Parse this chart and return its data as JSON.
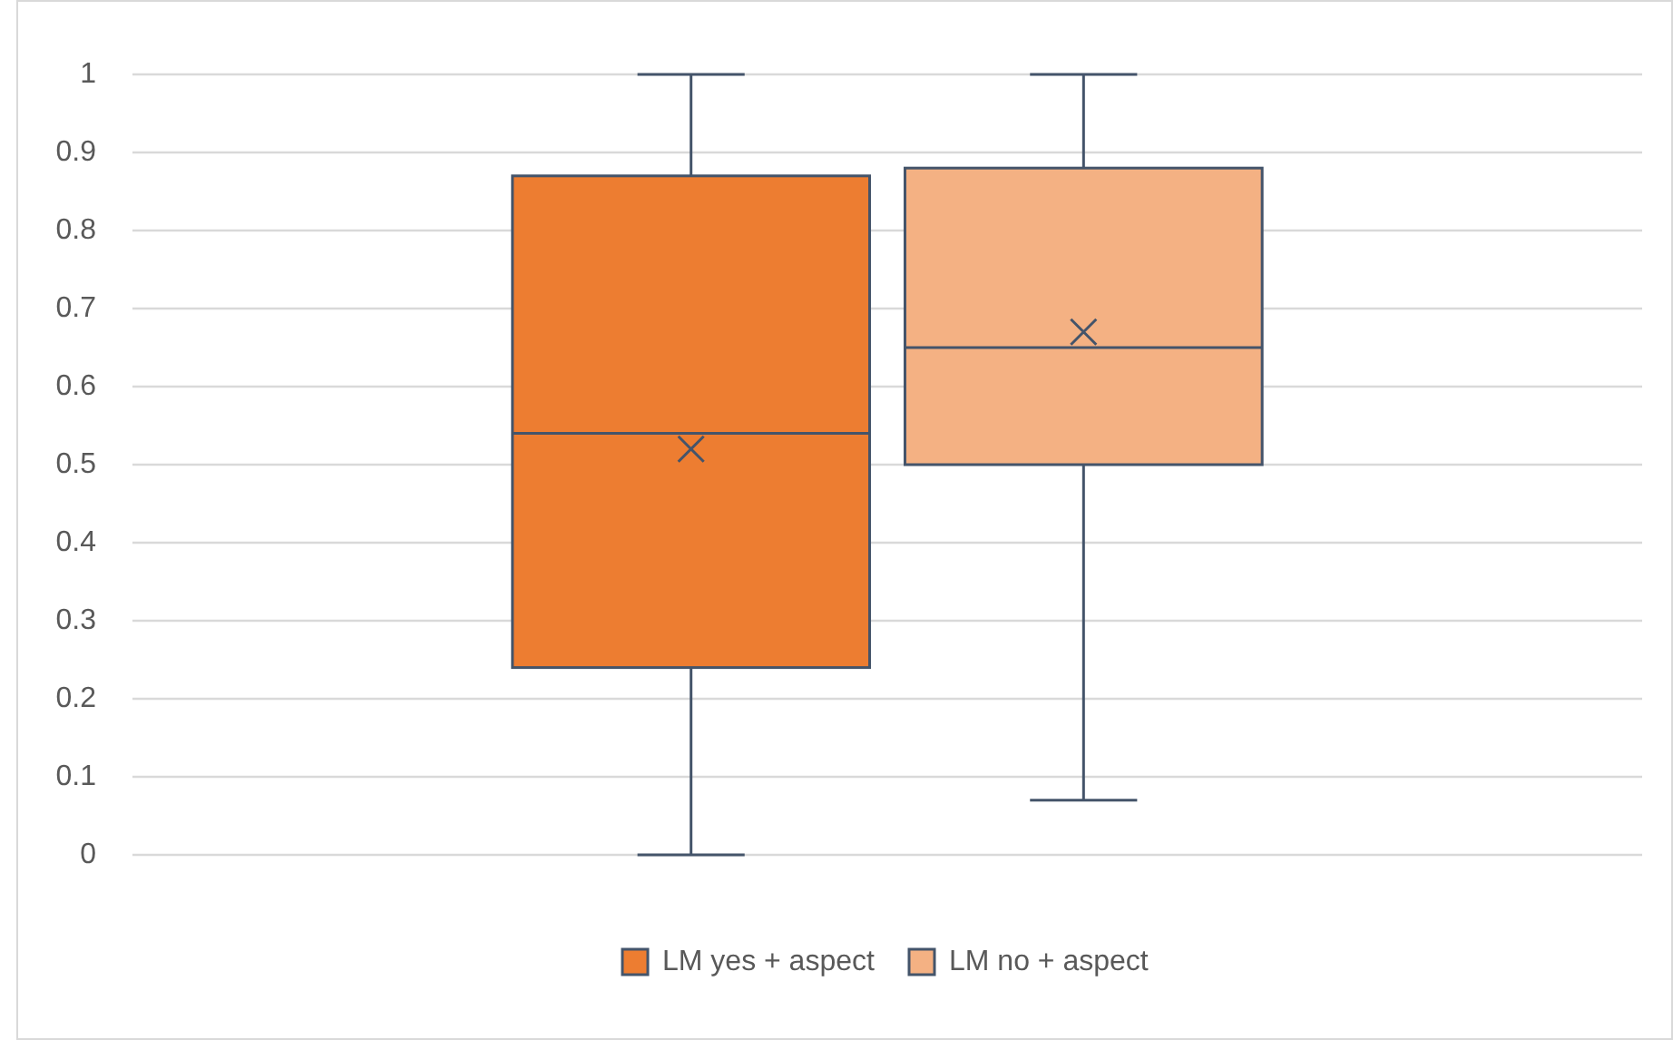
{
  "chart_data": {
    "type": "box",
    "categories": [
      null
    ],
    "series": [
      {
        "name": "LM yes + aspect",
        "color": "#ed7d31",
        "boxes": [
          {
            "low": 0,
            "q1": 0.24,
            "median": 0.54,
            "q3": 0.87,
            "high": 1,
            "mean": 0.52
          }
        ]
      },
      {
        "name": "LM no + aspect",
        "color": "#f4b183",
        "boxes": [
          {
            "low": 0.07,
            "q1": 0.5,
            "median": 0.65,
            "q3": 0.88,
            "high": 1,
            "mean": 0.67
          }
        ]
      }
    ],
    "ylim": [
      0,
      1
    ],
    "yticks": [
      0,
      0.1,
      0.2,
      0.3,
      0.4,
      0.5,
      0.6,
      0.7,
      0.8,
      0.9,
      1
    ],
    "grid": "y",
    "legend": "bottom"
  }
}
